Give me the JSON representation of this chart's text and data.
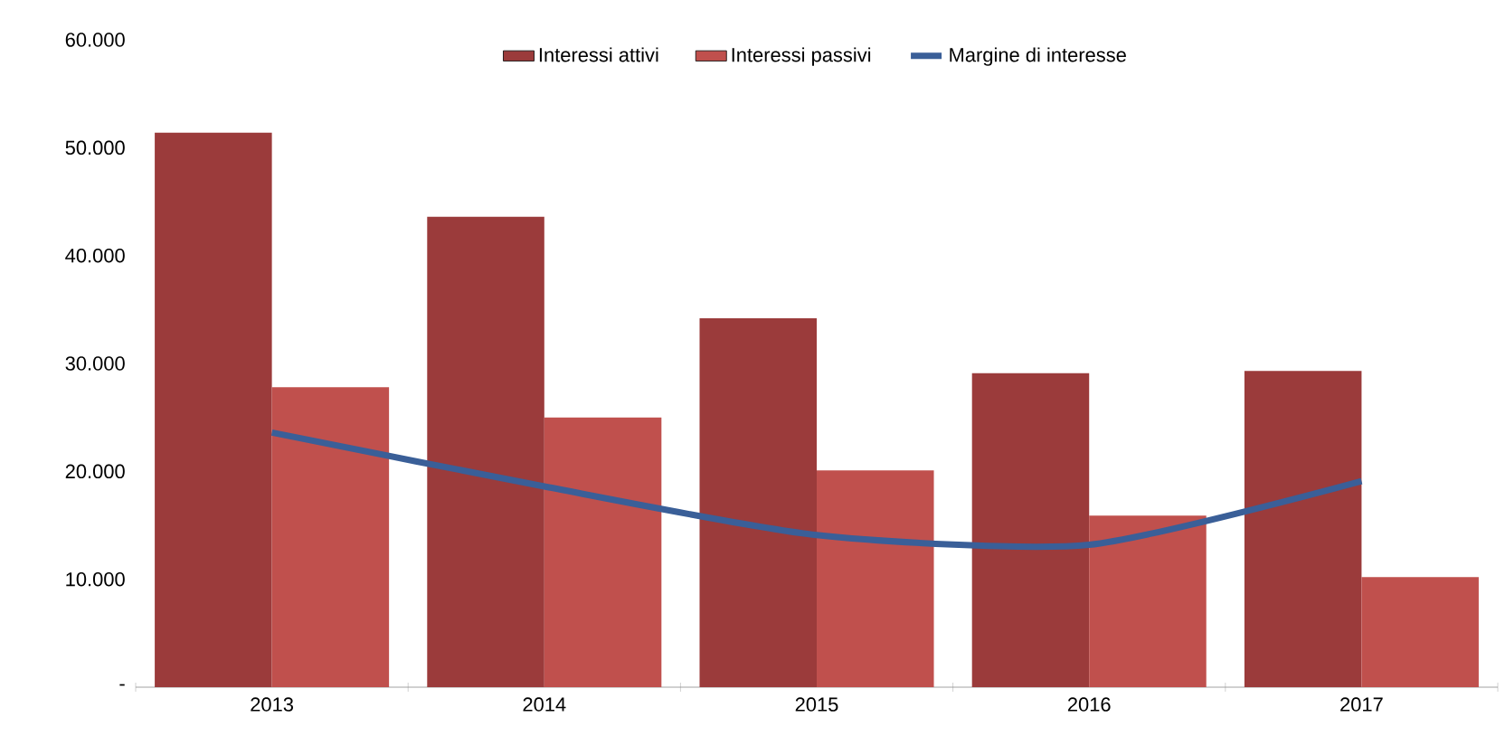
{
  "chart_data": {
    "type": "bar",
    "categories": [
      "2013",
      "2014",
      "2015",
      "2016",
      "2017"
    ],
    "series": [
      {
        "name": "Interessi attivi",
        "color": "#9b3b3b",
        "values": [
          51400,
          43600,
          34200,
          29100,
          29300
        ]
      },
      {
        "name": "Interessi passivi",
        "color": "#c0504d",
        "values": [
          27800,
          25000,
          20100,
          15900,
          10200
        ]
      },
      {
        "name": "Margine di interesse",
        "color": "#3a5f98",
        "type": "line",
        "values": [
          23600,
          18600,
          14100,
          13200,
          19100
        ]
      }
    ],
    "ylim": [
      0,
      60000
    ],
    "yticks": [
      {
        "value": 0,
        "label": "-"
      },
      {
        "value": 10000,
        "label": "10.000"
      },
      {
        "value": 20000,
        "label": "20.000"
      },
      {
        "value": 30000,
        "label": "30.000"
      },
      {
        "value": 40000,
        "label": "40.000"
      },
      {
        "value": 50000,
        "label": "50.000"
      },
      {
        "value": 60000,
        "label": "60.000"
      }
    ],
    "legend": "top",
    "grid": false,
    "marker": "none",
    "line_style": "solid"
  }
}
